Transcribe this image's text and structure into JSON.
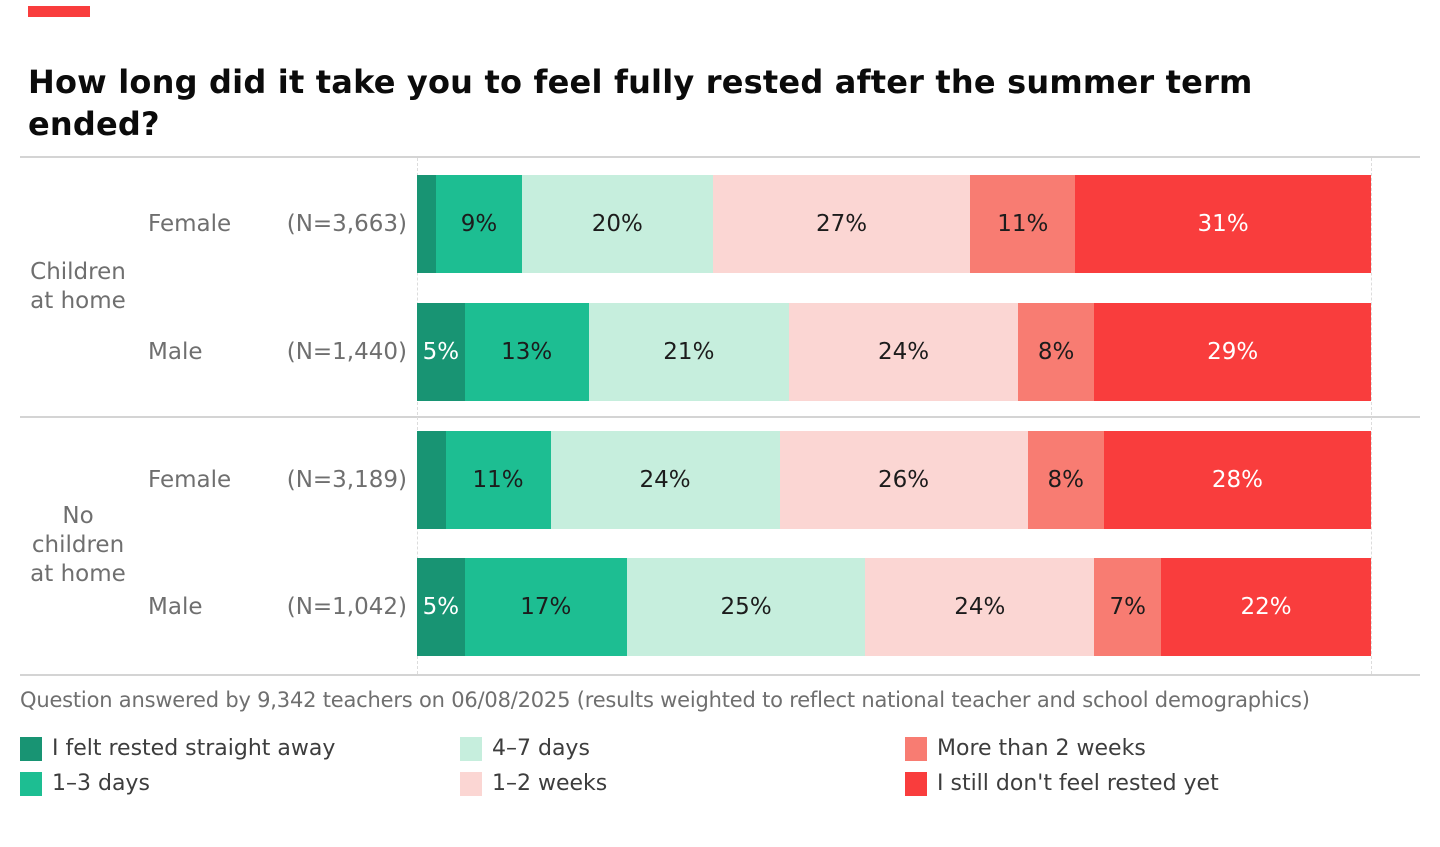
{
  "header": {
    "title_lines": [
      "How long did it take you to feel fully rested after the summer term",
      "ended?"
    ]
  },
  "footnote": "Question answered by 9,342 teachers on 06/08/2025 (results weighted to reflect national teacher and school demographics)",
  "accent_color": "#f93d3d",
  "chart_data": {
    "type": "bar",
    "stacked": true,
    "orientation": "horizontal",
    "title": "How long did it take you to feel fully rested after the summer term ended?",
    "unit": "%",
    "xlim": [
      0,
      100
    ],
    "legend_position": "bottom",
    "categories": [
      "I felt rested straight away",
      "1–3 days",
      "4–7 days",
      "1–2 weeks",
      "More than 2 weeks",
      "I still don't feel rested yet"
    ],
    "colors": [
      "#189473",
      "#1dbe92",
      "#c6eedd",
      "#fbd6d3",
      "#f87c72",
      "#f93d3d"
    ],
    "groups": [
      {
        "label": "Children at home",
        "label_lines": [
          "Children",
          "at home"
        ],
        "rows": [
          {
            "label": "Female",
            "n": "(N=3,663)",
            "values": [
              2,
              9,
              20,
              27,
              11,
              31
            ],
            "labels": [
              "",
              "9%",
              "20%",
              "27%",
              "11%",
              "31%"
            ]
          },
          {
            "label": "Male",
            "n": "(N=1,440)",
            "values": [
              5,
              13,
              21,
              24,
              8,
              29
            ],
            "labels": [
              "5%",
              "13%",
              "21%",
              "24%",
              "8%",
              "29%"
            ]
          }
        ]
      },
      {
        "label": "No children at home",
        "label_lines": [
          "No",
          "children",
          "at home"
        ],
        "rows": [
          {
            "label": "Female",
            "n": "(N=3,189)",
            "values": [
              3,
              11,
              24,
              26,
              8,
              28
            ],
            "labels": [
              "",
              "11%",
              "24%",
              "26%",
              "8%",
              "28%"
            ]
          },
          {
            "label": "Male",
            "n": "(N=1,042)",
            "values": [
              5,
              17,
              25,
              24,
              7,
              22
            ],
            "labels": [
              "5%",
              "17%",
              "25%",
              "24%",
              "7%",
              "22%"
            ]
          }
        ]
      }
    ]
  }
}
